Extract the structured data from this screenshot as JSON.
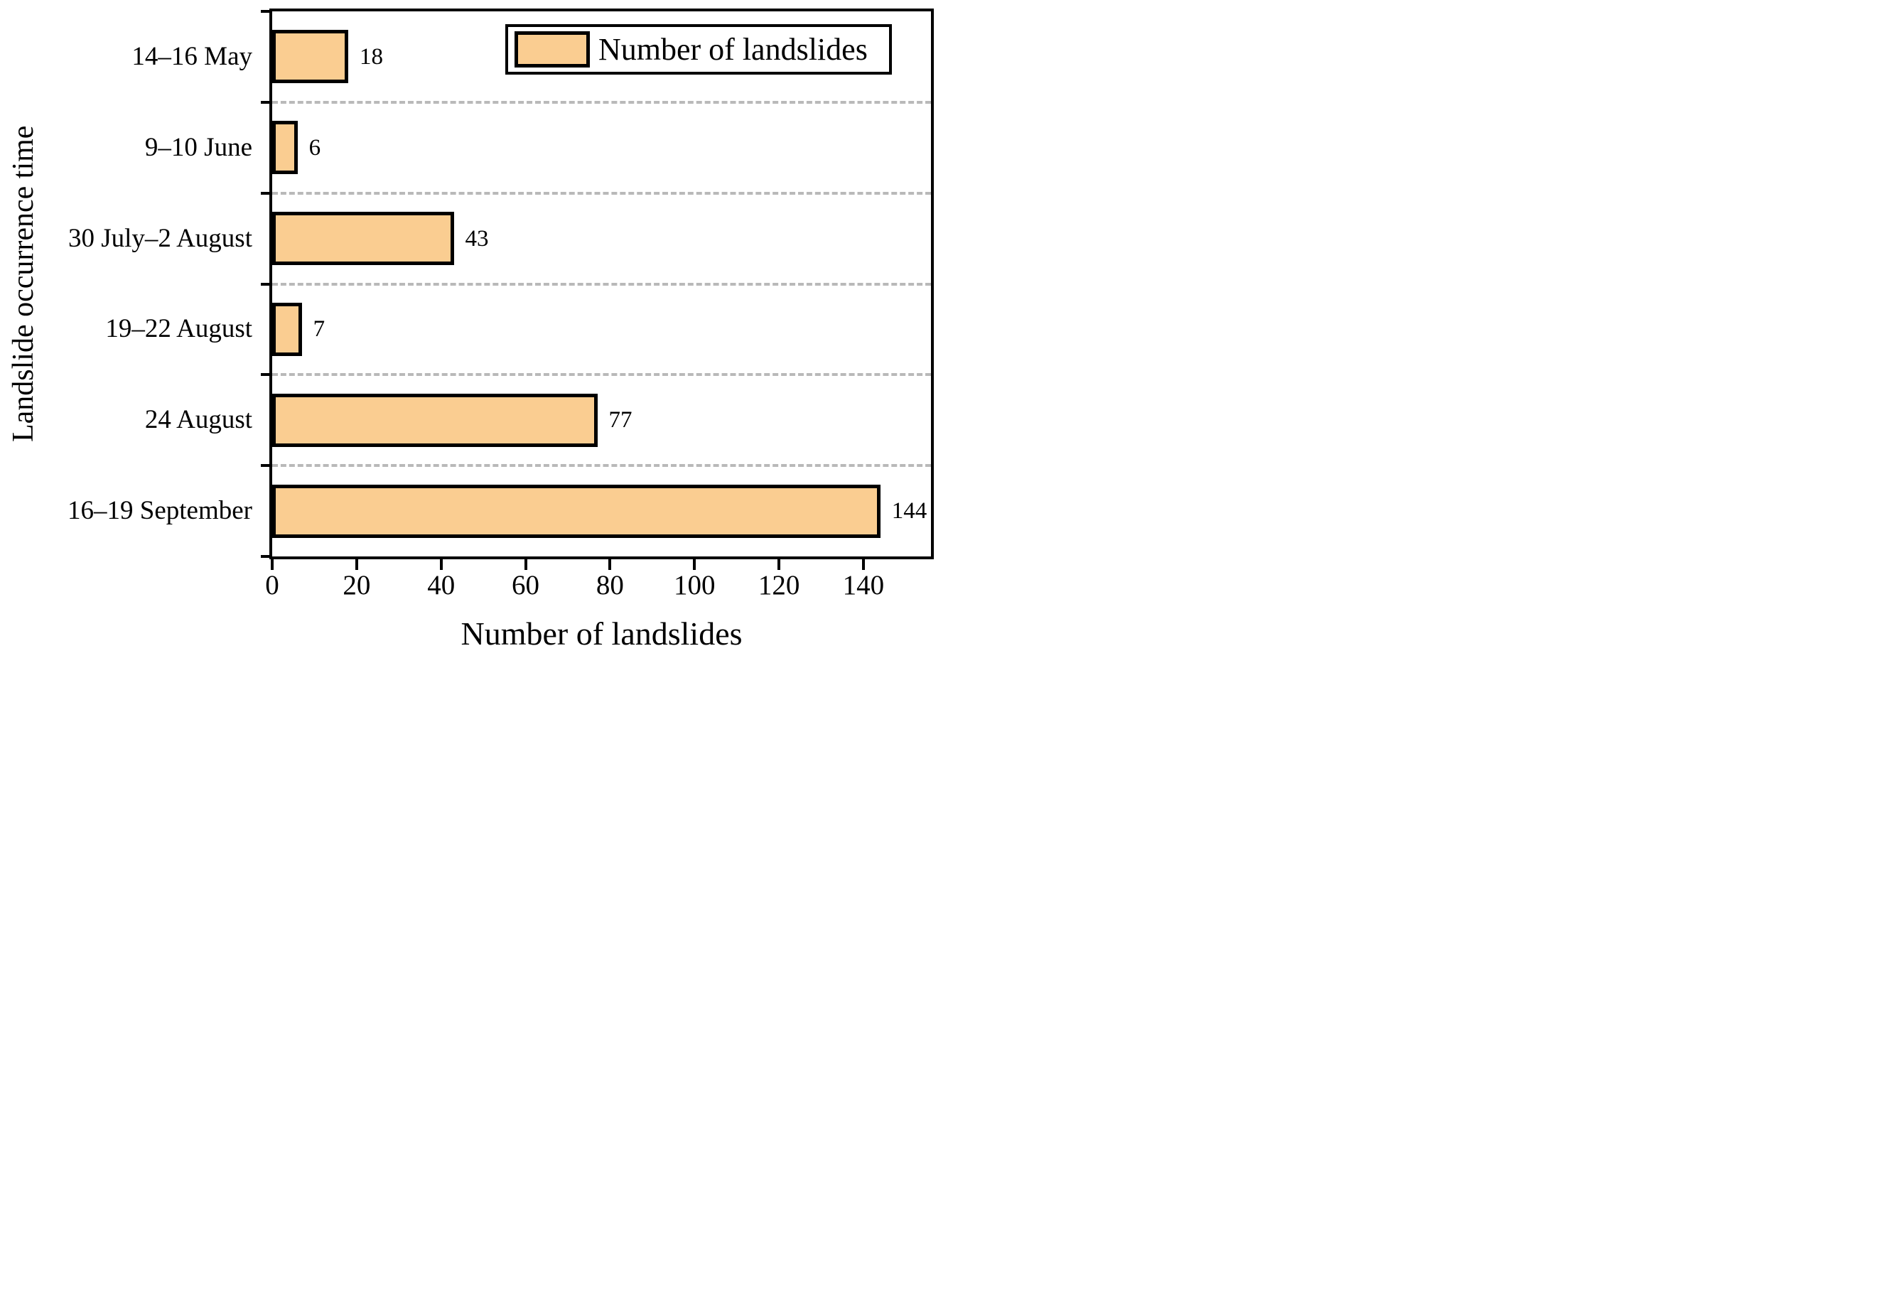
{
  "chart_data": {
    "type": "bar",
    "orientation": "horizontal",
    "categories": [
      "14–16 May",
      "9–10 June",
      "30 July–2 August",
      "19–22 August",
      "24 August",
      "16–19 September"
    ],
    "values": [
      18,
      6,
      43,
      7,
      77,
      144
    ],
    "value_labels": [
      "18",
      "6",
      "43",
      "7",
      "77",
      "144"
    ],
    "xlabel": "Number of landslides",
    "ylabel": "Landslide occurrence time",
    "xlim": [
      0,
      156
    ],
    "xticks": [
      0,
      20,
      40,
      60,
      80,
      100,
      120,
      140
    ],
    "grid": "dashed horizontal lines between category bands",
    "legend": {
      "label": "Number of landslides",
      "position": "top-right",
      "swatch_color": "#facd91"
    },
    "colors": {
      "bar_fill": "#facd91",
      "bar_border": "#000000",
      "axis": "#000000",
      "gridline": "#b9b9b9",
      "background": "#ffffff",
      "text": "#000000"
    }
  }
}
